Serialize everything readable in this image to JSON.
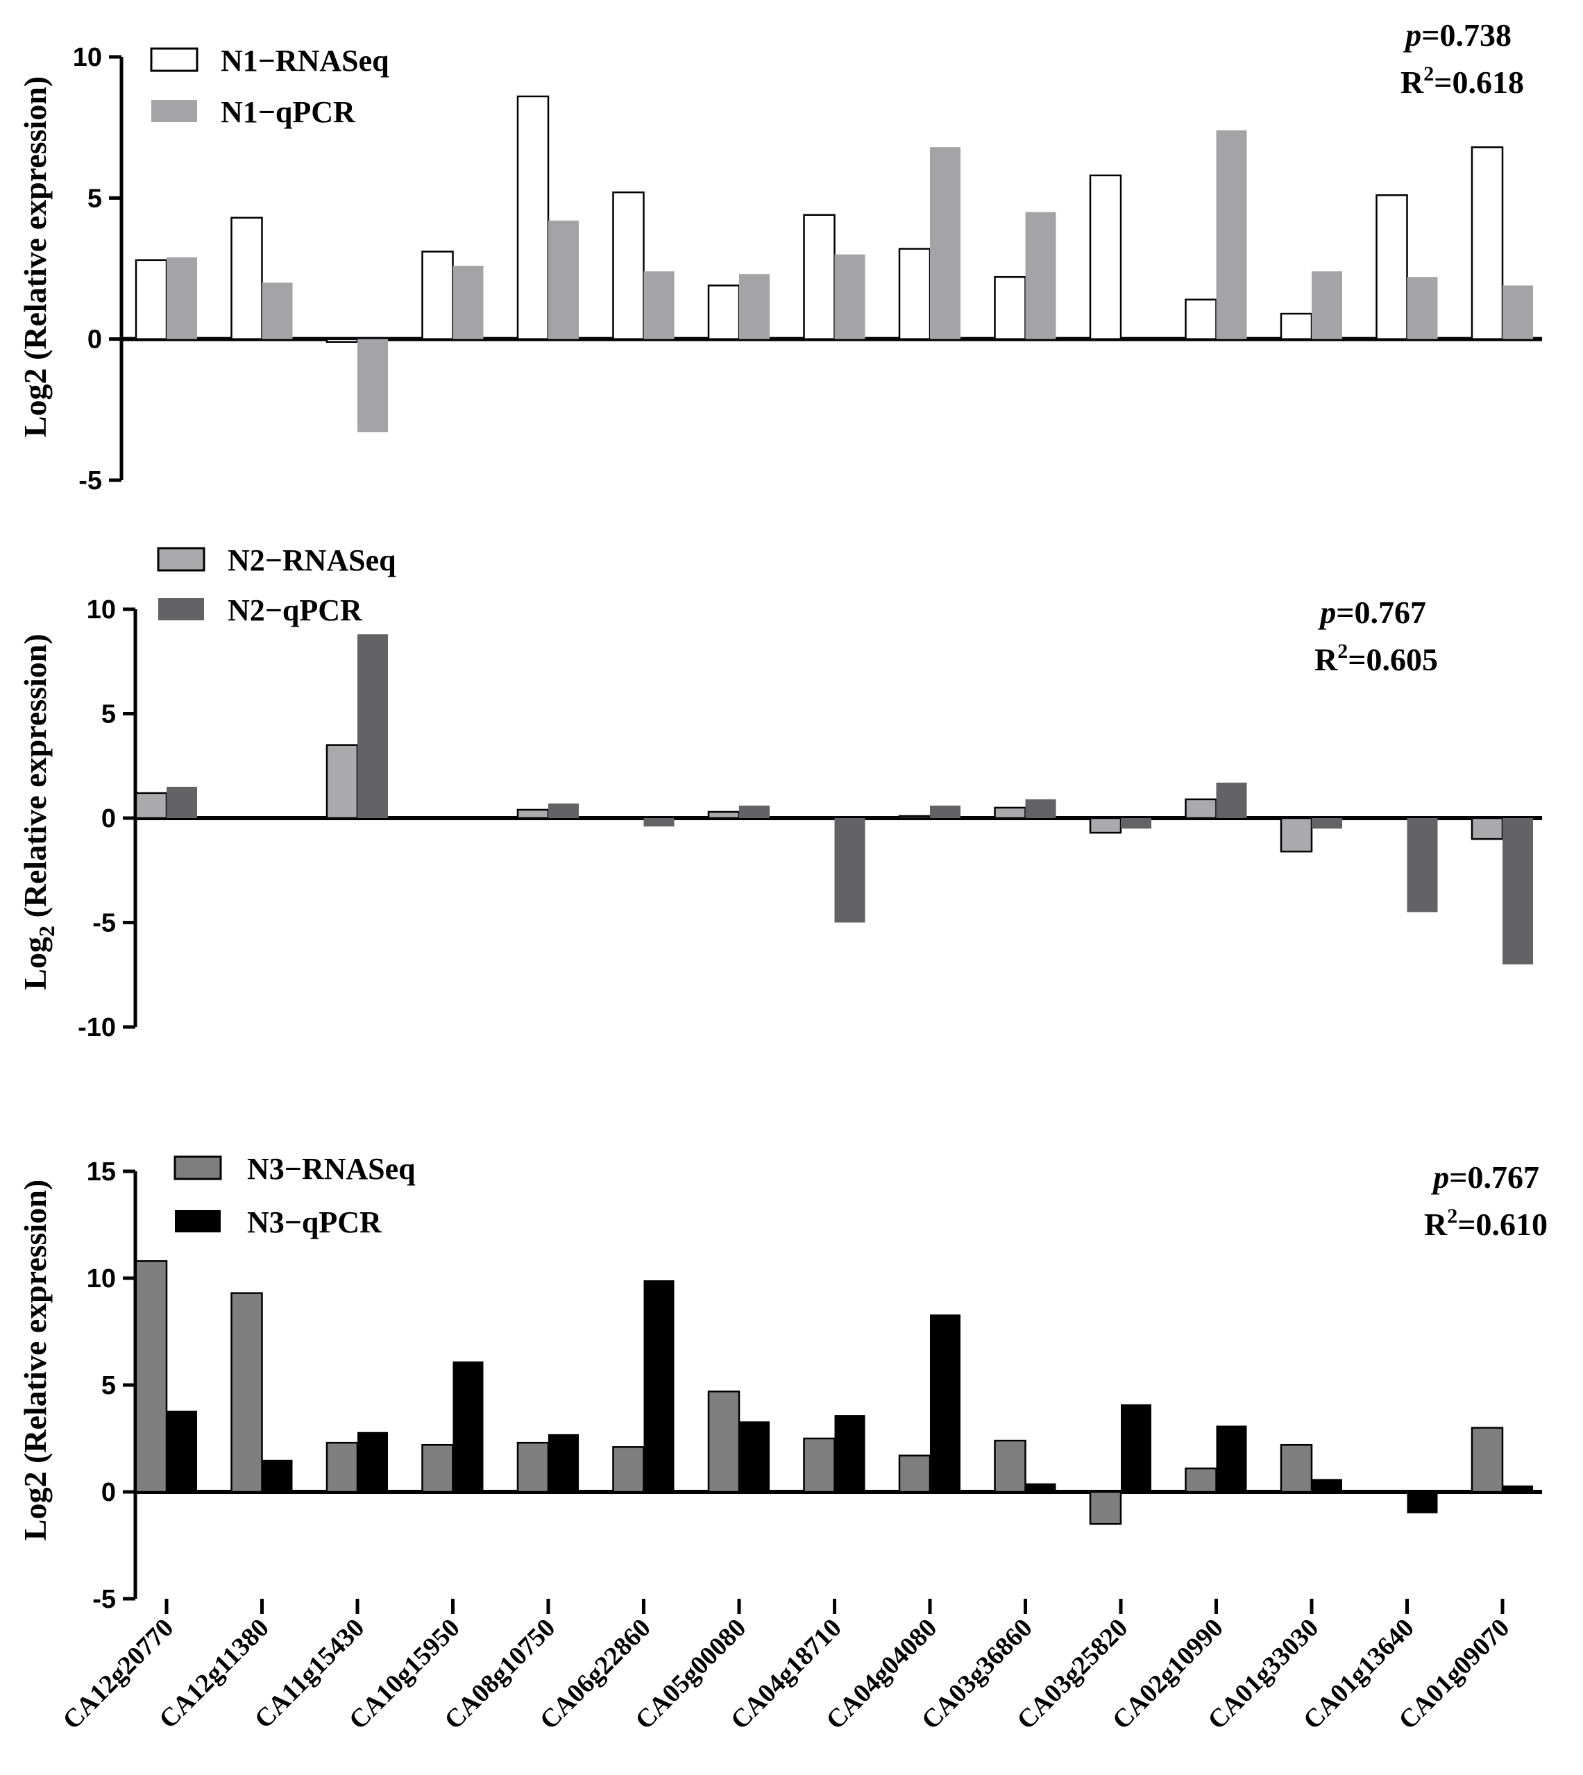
{
  "chart_data": [
    {
      "type": "bar",
      "id": "N1",
      "categories": [
        "CA12g20770",
        "CA12g11380",
        "CA11g15430",
        "CA10g15950",
        "CA08g10750",
        "CA06g22860",
        "CA05g00080",
        "CA04g18710",
        "CA04g04080",
        "CA03g36860",
        "CA03g25820",
        "CA02g10990",
        "CA01g33030",
        "CA01g13640",
        "CA01g09070"
      ],
      "series": [
        {
          "name": "N1−RNASeq",
          "color": "#ffffff",
          "values": [
            2.8,
            4.3,
            -0.1,
            3.1,
            8.6,
            5.2,
            1.9,
            4.4,
            3.2,
            2.2,
            5.8,
            1.4,
            0.9,
            5.1,
            6.8
          ]
        },
        {
          "name": "N1−qPCR",
          "color": "#a4a4a6",
          "values": [
            2.9,
            2.0,
            -3.3,
            2.6,
            4.2,
            2.4,
            2.3,
            3.0,
            6.8,
            4.5,
            0,
            7.4,
            2.4,
            2.2,
            1.9
          ]
        }
      ],
      "ylabel": "Log2 (Relative expression)",
      "yticks": [
        -5,
        0,
        5,
        10
      ],
      "ylim": [
        -5,
        10
      ],
      "stats": {
        "p_label": "p",
        "p_value": "=0.738",
        "r2_label": "R",
        "r2_sup": "2",
        "r2_value": "=0.618"
      }
    },
    {
      "type": "bar",
      "id": "N2",
      "categories": [
        "CA12g20770",
        "CA12g11380",
        "CA11g15430",
        "CA10g15950",
        "CA08g10750",
        "CA06g22860",
        "CA05g00080",
        "CA04g18710",
        "CA04g04080",
        "CA03g36860",
        "CA03g25820",
        "CA02g10990",
        "CA01g33030",
        "CA01g13640",
        "CA01g09070"
      ],
      "series": [
        {
          "name": "N2−RNASeq",
          "color": "#aaaaad",
          "values": [
            1.2,
            0,
            3.5,
            0,
            0.4,
            0,
            0.3,
            0,
            0.1,
            0.5,
            -0.7,
            0.9,
            -1.6,
            0,
            -1.0
          ]
        },
        {
          "name": "N2−qPCR",
          "color": "#636365",
          "values": [
            1.5,
            0,
            8.8,
            0,
            0.7,
            -0.4,
            0.6,
            -5.0,
            0.6,
            0.9,
            -0.5,
            1.7,
            -0.5,
            -4.5,
            -7.0
          ]
        }
      ],
      "ylabel_main": "Log",
      "ylabel_sub": "2",
      "ylabel_rest": " (Relative expression)",
      "yticks": [
        -10,
        -5,
        0,
        5,
        10
      ],
      "ylim": [
        -10,
        10
      ],
      "stats": {
        "p_label": "p",
        "p_value": "=0.767",
        "r2_label": "R",
        "r2_sup": "2",
        "r2_value": "=0.605"
      }
    },
    {
      "type": "bar",
      "id": "N3",
      "categories": [
        "CA12g20770",
        "CA12g11380",
        "CA11g15430",
        "CA10g15950",
        "CA08g10750",
        "CA06g22860",
        "CA05g00080",
        "CA04g18710",
        "CA04g04080",
        "CA03g36860",
        "CA03g25820",
        "CA02g10990",
        "CA01g33030",
        "CA01g13640",
        "CA01g09070"
      ],
      "series": [
        {
          "name": "N3−RNASeq",
          "color": "#7f7f7f",
          "values": [
            10.8,
            9.3,
            2.3,
            2.2,
            2.3,
            2.1,
            4.7,
            2.5,
            1.7,
            2.4,
            -1.5,
            1.1,
            2.2,
            0,
            3.0
          ]
        },
        {
          "name": "N3−qPCR",
          "color": "#000000",
          "values": [
            3.8,
            1.5,
            2.8,
            6.1,
            2.7,
            9.9,
            3.3,
            3.6,
            8.3,
            0.4,
            4.1,
            3.1,
            0.6,
            -1.0,
            0.3
          ]
        }
      ],
      "ylabel": "Log2 (Relative expression)",
      "yticks": [
        -5,
        0,
        5,
        10,
        15
      ],
      "ylim": [
        -5,
        15
      ],
      "stats": {
        "p_label": "p",
        "p_value": "=0.767",
        "r2_label": "R",
        "r2_sup": "2",
        "r2_value": "=0.610"
      }
    }
  ]
}
